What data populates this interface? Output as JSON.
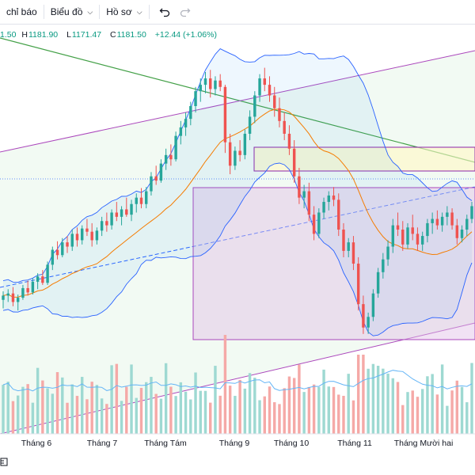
{
  "toolbar": {
    "indicators_label": "chỉ báo",
    "chart_type_label": "Biểu đồ",
    "profile_label": "Hồ sơ"
  },
  "ohlc": {
    "open": "1.50",
    "high_label": "H",
    "high": "1181.90",
    "low_label": "L",
    "low": "1171.47",
    "close_label": "C",
    "close": "1181.50",
    "change": "+12.44 (+1.06%)"
  },
  "x_axis": {
    "months": [
      "Tháng 6",
      "Tháng 7",
      "Tháng Tám",
      "Tháng 9",
      "Tháng 10",
      "Tháng 11",
      "Tháng Mười hai"
    ]
  },
  "colors": {
    "up": "#26a69a",
    "down": "#ef5350",
    "bollinger": "#2962ff",
    "ma": "#f57c00",
    "channel": "#9c27b0",
    "trendline": "#43a047"
  },
  "chart_data": {
    "type": "candlestick",
    "y_range": [
      1040,
      1330
    ],
    "series": [
      {
        "values": [
          [
            1090,
            1098,
            1082,
            1094
          ],
          [
            1094,
            1100,
            1088,
            1096
          ],
          [
            1096,
            1102,
            1084,
            1088
          ],
          [
            1088,
            1095,
            1080,
            1092
          ],
          [
            1092,
            1104,
            1090,
            1101
          ],
          [
            1101,
            1108,
            1094,
            1097
          ],
          [
            1097,
            1110,
            1095,
            1107
          ],
          [
            1107,
            1115,
            1100,
            1112
          ],
          [
            1112,
            1118,
            1104,
            1106
          ],
          [
            1106,
            1126,
            1104,
            1123
          ],
          [
            1123,
            1140,
            1118,
            1137
          ],
          [
            1137,
            1145,
            1128,
            1132
          ],
          [
            1132,
            1148,
            1130,
            1144
          ],
          [
            1144,
            1150,
            1134,
            1140
          ],
          [
            1140,
            1156,
            1136,
            1152
          ],
          [
            1152,
            1158,
            1140,
            1146
          ],
          [
            1146,
            1160,
            1142,
            1157
          ],
          [
            1157,
            1166,
            1150,
            1154
          ],
          [
            1154,
            1162,
            1140,
            1146
          ],
          [
            1146,
            1158,
            1142,
            1155
          ],
          [
            1155,
            1168,
            1150,
            1164
          ],
          [
            1164,
            1172,
            1154,
            1160
          ],
          [
            1160,
            1175,
            1156,
            1172
          ],
          [
            1172,
            1182,
            1164,
            1168
          ],
          [
            1168,
            1178,
            1160,
            1175
          ],
          [
            1175,
            1186,
            1168,
            1170
          ],
          [
            1170,
            1184,
            1164,
            1180
          ],
          [
            1180,
            1190,
            1172,
            1186
          ],
          [
            1186,
            1195,
            1176,
            1180
          ],
          [
            1180,
            1196,
            1176,
            1192
          ],
          [
            1192,
            1210,
            1188,
            1206
          ],
          [
            1206,
            1216,
            1198,
            1202
          ],
          [
            1202,
            1222,
            1200,
            1218
          ],
          [
            1218,
            1232,
            1212,
            1226
          ],
          [
            1226,
            1236,
            1216,
            1222
          ],
          [
            1222,
            1248,
            1220,
            1244
          ],
          [
            1244,
            1258,
            1236,
            1252
          ],
          [
            1252,
            1266,
            1244,
            1260
          ],
          [
            1260,
            1276,
            1254,
            1272
          ],
          [
            1272,
            1290,
            1266,
            1286
          ],
          [
            1286,
            1298,
            1276,
            1292
          ],
          [
            1292,
            1304,
            1284,
            1298
          ],
          [
            1298,
            1306,
            1280,
            1288
          ],
          [
            1288,
            1300,
            1282,
            1296
          ],
          [
            1296,
            1302,
            1286,
            1290
          ],
          [
            1290,
            1292,
            1228,
            1238
          ],
          [
            1238,
            1246,
            1208,
            1216
          ],
          [
            1216,
            1234,
            1212,
            1230
          ],
          [
            1230,
            1240,
            1220,
            1226
          ],
          [
            1226,
            1250,
            1222,
            1246
          ],
          [
            1246,
            1268,
            1240,
            1262
          ],
          [
            1262,
            1286,
            1256,
            1282
          ],
          [
            1282,
            1302,
            1276,
            1298
          ],
          [
            1298,
            1308,
            1286,
            1292
          ],
          [
            1292,
            1300,
            1276,
            1282
          ],
          [
            1282,
            1290,
            1262,
            1270
          ],
          [
            1270,
            1280,
            1252,
            1258
          ],
          [
            1258,
            1266,
            1240,
            1246
          ],
          [
            1246,
            1254,
            1226,
            1232
          ],
          [
            1232,
            1240,
            1200,
            1206
          ],
          [
            1206,
            1214,
            1180,
            1186
          ],
          [
            1186,
            1198,
            1176,
            1192
          ],
          [
            1192,
            1200,
            1164,
            1170
          ],
          [
            1170,
            1178,
            1146,
            1152
          ],
          [
            1152,
            1176,
            1148,
            1172
          ],
          [
            1172,
            1186,
            1166,
            1182
          ],
          [
            1182,
            1192,
            1174,
            1188
          ],
          [
            1188,
            1196,
            1178,
            1184
          ],
          [
            1184,
            1190,
            1150,
            1156
          ],
          [
            1156,
            1162,
            1130,
            1136
          ],
          [
            1136,
            1148,
            1130,
            1144
          ],
          [
            1144,
            1150,
            1118,
            1124
          ],
          [
            1124,
            1130,
            1080,
            1086
          ],
          [
            1086,
            1094,
            1058,
            1064
          ],
          [
            1064,
            1078,
            1058,
            1074
          ],
          [
            1074,
            1100,
            1070,
            1096
          ],
          [
            1096,
            1120,
            1092,
            1116
          ],
          [
            1116,
            1134,
            1110,
            1128
          ],
          [
            1128,
            1146,
            1122,
            1140
          ],
          [
            1140,
            1166,
            1134,
            1160
          ],
          [
            1160,
            1172,
            1150,
            1156
          ],
          [
            1156,
            1164,
            1136,
            1142
          ],
          [
            1142,
            1162,
            1138,
            1158
          ],
          [
            1158,
            1170,
            1146,
            1152
          ],
          [
            1152,
            1158,
            1136,
            1142
          ],
          [
            1142,
            1154,
            1136,
            1150
          ],
          [
            1150,
            1166,
            1144,
            1162
          ],
          [
            1162,
            1172,
            1152,
            1166
          ],
          [
            1166,
            1174,
            1156,
            1160
          ],
          [
            1160,
            1172,
            1154,
            1168
          ],
          [
            1168,
            1178,
            1160,
            1172
          ],
          [
            1172,
            1176,
            1156,
            1160
          ],
          [
            1160,
            1166,
            1142,
            1148
          ],
          [
            1148,
            1160,
            1144,
            1156
          ],
          [
            1156,
            1170,
            1150,
            1166
          ],
          [
            1166,
            1182,
            1162,
            1178
          ]
        ]
      }
    ]
  }
}
